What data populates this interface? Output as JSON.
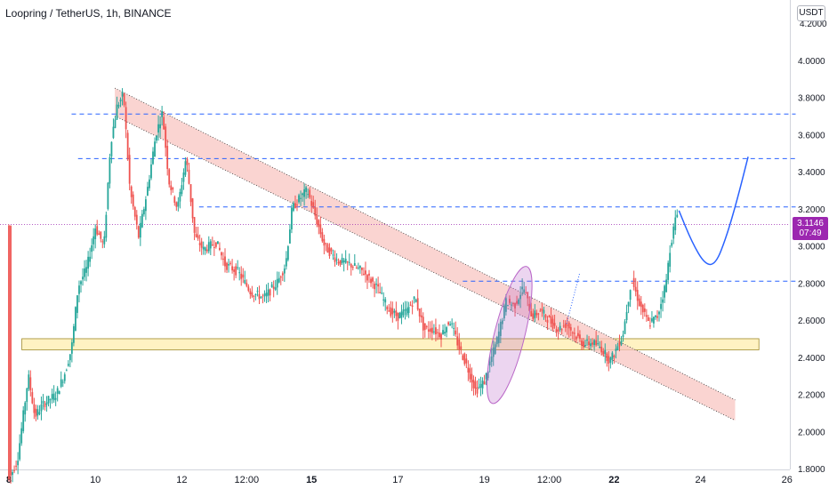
{
  "header": {
    "symbol_title": "Loopring / TetherUS, 1h, BINANCE",
    "currency": "USDT"
  },
  "last_price": {
    "value": "3.1146",
    "countdown": "07:49"
  },
  "colors": {
    "up_candle": "#26a69a",
    "down_candle": "#ef5350",
    "trend_channel_fill": "#f8c6c1",
    "support_zone_fill": "#fff2c2",
    "resistance_line": "#2962ff",
    "projection_line": "#2962ff",
    "highlight_ellipse": "#ba68c8",
    "price_label": "#9c27b0"
  },
  "chart_data": {
    "type": "candlestick",
    "title": "Loopring / TetherUS, 1h, BINANCE",
    "ylim": [
      1.7,
      4.2
    ],
    "x_range_days": [
      8,
      27
    ],
    "y_ticks": [
      "4.0000",
      "3.8000",
      "3.6000",
      "3.4000",
      "3.2000",
      "3.0000",
      "2.8000",
      "2.6000",
      "2.4000",
      "2.2000",
      "2.0000",
      "1.8000"
    ],
    "y_top_partial_tick": "4.2000",
    "x_ticks": [
      {
        "label": "8",
        "day": 8,
        "bold": true
      },
      {
        "label": "10",
        "day": 10,
        "bold": false
      },
      {
        "label": "12",
        "day": 12,
        "bold": false
      },
      {
        "label": "12:00",
        "day": 13.5,
        "bold": false
      },
      {
        "label": "15",
        "day": 15,
        "bold": true
      },
      {
        "label": "17",
        "day": 17,
        "bold": false
      },
      {
        "label": "19",
        "day": 19,
        "bold": false
      },
      {
        "label": "12:00",
        "day": 20.5,
        "bold": false
      },
      {
        "label": "22",
        "day": 22,
        "bold": true
      },
      {
        "label": "24",
        "day": 24,
        "bold": false
      },
      {
        "label": "26",
        "day": 26,
        "bold": false
      }
    ],
    "close_path": [
      [
        8.0,
        1.74
      ],
      [
        8.2,
        1.85
      ],
      [
        8.45,
        2.3
      ],
      [
        8.6,
        2.08
      ],
      [
        8.8,
        2.15
      ],
      [
        9.1,
        2.2
      ],
      [
        9.3,
        2.32
      ],
      [
        9.45,
        2.45
      ],
      [
        9.6,
        2.78
      ],
      [
        9.8,
        2.88
      ],
      [
        10.0,
        3.1
      ],
      [
        10.2,
        3.0
      ],
      [
        10.35,
        3.55
      ],
      [
        10.5,
        3.75
      ],
      [
        10.65,
        3.82
      ],
      [
        10.8,
        3.3
      ],
      [
        11.0,
        3.05
      ],
      [
        11.2,
        3.3
      ],
      [
        11.4,
        3.6
      ],
      [
        11.55,
        3.72
      ],
      [
        11.7,
        3.35
      ],
      [
        11.9,
        3.2
      ],
      [
        12.1,
        3.48
      ],
      [
        12.3,
        3.05
      ],
      [
        12.5,
        2.98
      ],
      [
        12.8,
        3.02
      ],
      [
        13.0,
        2.9
      ],
      [
        13.3,
        2.86
      ],
      [
        13.6,
        2.75
      ],
      [
        13.9,
        2.72
      ],
      [
        14.2,
        2.8
      ],
      [
        14.4,
        2.9
      ],
      [
        14.55,
        3.2
      ],
      [
        14.7,
        3.25
      ],
      [
        14.9,
        3.3
      ],
      [
        15.1,
        3.15
      ],
      [
        15.3,
        3.0
      ],
      [
        15.6,
        2.92
      ],
      [
        15.9,
        2.9
      ],
      [
        16.2,
        2.86
      ],
      [
        16.5,
        2.78
      ],
      [
        16.8,
        2.65
      ],
      [
        17.0,
        2.62
      ],
      [
        17.2,
        2.65
      ],
      [
        17.4,
        2.72
      ],
      [
        17.6,
        2.55
      ],
      [
        17.8,
        2.55
      ],
      [
        18.0,
        2.52
      ],
      [
        18.2,
        2.6
      ],
      [
        18.4,
        2.46
      ],
      [
        18.6,
        2.35
      ],
      [
        18.8,
        2.22
      ],
      [
        19.0,
        2.27
      ],
      [
        19.1,
        2.35
      ],
      [
        19.3,
        2.5
      ],
      [
        19.5,
        2.7
      ],
      [
        19.7,
        2.68
      ],
      [
        19.9,
        2.78
      ],
      [
        20.1,
        2.62
      ],
      [
        20.3,
        2.65
      ],
      [
        20.5,
        2.6
      ],
      [
        20.7,
        2.55
      ],
      [
        20.9,
        2.58
      ],
      [
        21.1,
        2.52
      ],
      [
        21.3,
        2.47
      ],
      [
        21.5,
        2.48
      ],
      [
        21.7,
        2.45
      ],
      [
        21.9,
        2.38
      ],
      [
        22.0,
        2.42
      ],
      [
        22.2,
        2.52
      ],
      [
        22.4,
        2.82
      ],
      [
        22.6,
        2.68
      ],
      [
        22.8,
        2.58
      ],
      [
        23.0,
        2.62
      ],
      [
        23.2,
        2.8
      ],
      [
        23.3,
        3.0
      ],
      [
        23.45,
        3.18
      ],
      [
        23.5,
        3.11
      ]
    ],
    "annotations": {
      "support_zone": {
        "y_low": 2.44,
        "y_high": 2.5,
        "x_start": 8.3,
        "x_end": 25.35
      },
      "resistance_levels": [
        {
          "y": 3.71,
          "x_start": 9.45,
          "x_end": 26.2
        },
        {
          "y": 3.47,
          "x_start": 9.6,
          "x_end": 26.2
        },
        {
          "y": 3.21,
          "x_start": 12.4,
          "x_end": 26.2
        },
        {
          "y": 2.81,
          "x_start": 18.5,
          "x_end": 26.2
        }
      ],
      "descending_channel": {
        "upper": [
          [
            10.45,
            3.85
          ],
          [
            24.8,
            2.17
          ]
        ],
        "lower": [
          [
            10.45,
            3.7
          ],
          [
            24.8,
            2.06
          ]
        ]
      },
      "current_price_line": 3.1146,
      "projection_path": [
        [
          23.5,
          3.19
        ],
        [
          23.8,
          3.02
        ],
        [
          24.1,
          2.9
        ],
        [
          24.35,
          2.9
        ],
        [
          24.6,
          3.05
        ],
        [
          24.85,
          3.25
        ],
        [
          25.1,
          3.48
        ]
      ],
      "dotted_arrow": [
        [
          20.9,
          2.58
        ],
        [
          21.2,
          2.85
        ]
      ],
      "highlight_ellipse": {
        "cx_day": 19.58,
        "cy_price": 2.52,
        "rx_days": 0.35,
        "ry_price": 0.38,
        "rotate_deg": 14
      }
    }
  }
}
